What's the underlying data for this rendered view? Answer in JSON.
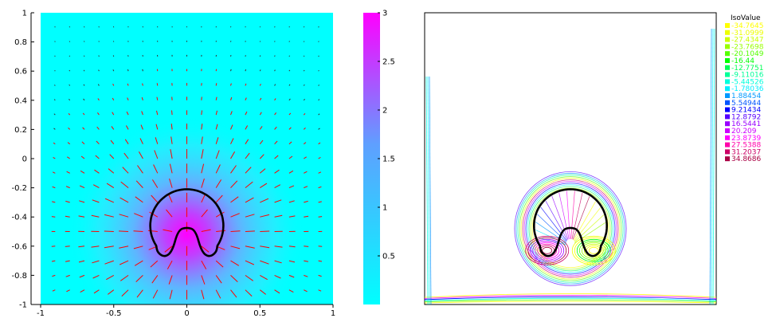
{
  "chart_data": [
    {
      "type": "heatmap",
      "title": "",
      "xlabel": "",
      "ylabel": "",
      "xlim": [
        -1,
        1
      ],
      "ylim": [
        -1,
        1
      ],
      "x_ticks": [
        -1,
        -0.5,
        0,
        0.5,
        1
      ],
      "x_tick_labels": [
        "-1",
        "-0.5",
        "0",
        "0.5",
        "1"
      ],
      "y_ticks": [
        1,
        0.8,
        0.6,
        0.4,
        0.2,
        0,
        -0.2,
        -0.4,
        -0.6,
        -0.8,
        -1
      ],
      "y_tick_labels": [
        "1",
        "0.8",
        "0.6",
        "0.4",
        "0.2",
        "0",
        "-0.2",
        "-0.4",
        "-0.6",
        "-0.8",
        "-1"
      ],
      "colorbar": {
        "range": [
          0,
          3
        ],
        "ticks": [
          0.5,
          1,
          1.5,
          2,
          2.5,
          3
        ],
        "tick_labels": [
          "0.5",
          "1",
          "1.5",
          "2",
          "2.5",
          "3"
        ],
        "color_low": "#00ffff",
        "color_high": "#ff00ff"
      },
      "field_peak": {
        "x": 0,
        "y": -0.52,
        "value": 3
      },
      "vector_field": {
        "color": "#ff0000",
        "grid_spacing": 0.1
      },
      "interface_curve": {
        "color": "#000000",
        "shape": "crescent",
        "outer_center": [
          0,
          -0.46
        ],
        "outer_radius": 0.25,
        "inner_top": [
          0,
          -0.47
        ]
      }
    },
    {
      "type": "line",
      "title": "",
      "xlim": [
        -1,
        1
      ],
      "ylim": [
        -1,
        1
      ],
      "legend": {
        "title": "IsoValue",
        "placement": "top-right",
        "entries": [
          {
            "label": "-34.7645",
            "color": "#ffff00"
          },
          {
            "label": "-31.0999",
            "color": "#eeff00"
          },
          {
            "label": "-27.4347",
            "color": "#ccff00"
          },
          {
            "label": "-23.7698",
            "color": "#99ff00"
          },
          {
            "label": "-20.1049",
            "color": "#55ff00"
          },
          {
            "label": "-16.44",
            "color": "#00ff00"
          },
          {
            "label": "-12.7751",
            "color": "#00ff55"
          },
          {
            "label": "-9.11016",
            "color": "#00ff99"
          },
          {
            "label": "-5.44526",
            "color": "#00ffdd"
          },
          {
            "label": "-1.78036",
            "color": "#00eeff"
          },
          {
            "label": "1.88454",
            "color": "#0099ff"
          },
          {
            "label": "5.54944",
            "color": "#0055ff"
          },
          {
            "label": "9.21434",
            "color": "#0000ff"
          },
          {
            "label": "12.8792",
            "color": "#5500ff"
          },
          {
            "label": "16.5441",
            "color": "#9900ff"
          },
          {
            "label": "20.209",
            "color": "#cc00ff"
          },
          {
            "label": "23.8739",
            "color": "#ff00ff"
          },
          {
            "label": "27.5388",
            "color": "#ff00aa"
          },
          {
            "label": "31.2037",
            "color": "#cc0066"
          },
          {
            "label": "34.8686",
            "color": "#aa0044"
          }
        ]
      },
      "interface_curve": {
        "color": "#000000",
        "shape": "crescent",
        "outer_center": [
          0,
          -0.46
        ],
        "outer_radius": 0.25,
        "inner_top": [
          0,
          -0.47
        ]
      }
    }
  ]
}
